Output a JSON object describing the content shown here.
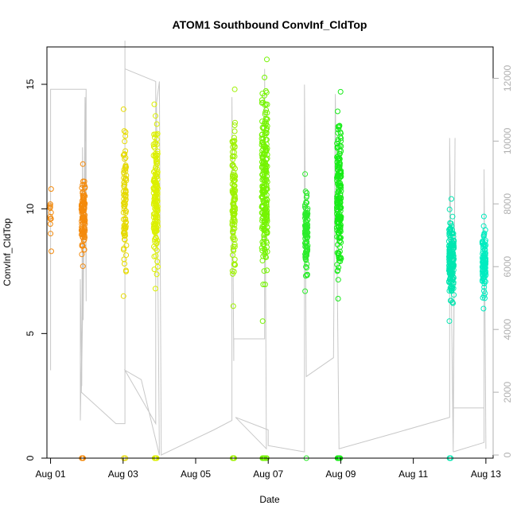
{
  "chart_data": {
    "type": "scatter",
    "title": "ATOM1 Southbound ConvInf_CldTop",
    "xlabel": "Date",
    "ylabel": "ConvInf_CldTop",
    "x_range_days": [
      0.9,
      13.2
    ],
    "ylim": [
      0,
      16.5
    ],
    "y2lim": [
      -100,
      13000
    ],
    "x_ticks": [
      {
        "day": 1,
        "label": "Aug 01"
      },
      {
        "day": 3,
        "label": "Aug 03"
      },
      {
        "day": 5,
        "label": "Aug 05"
      },
      {
        "day": 7,
        "label": "Aug 07"
      },
      {
        "day": 9,
        "label": "Aug 09"
      },
      {
        "day": 11,
        "label": "Aug 11"
      },
      {
        "day": 13,
        "label": "Aug 13"
      }
    ],
    "y_ticks": [
      {
        "value": 0,
        "label": "0"
      },
      {
        "value": 5,
        "label": "5"
      },
      {
        "value": 10,
        "label": "10"
      },
      {
        "value": 15,
        "label": "15"
      }
    ],
    "y2_ticks": [
      {
        "value": 0,
        "label": "0"
      },
      {
        "value": 2000,
        "label": "2000"
      },
      {
        "value": 4000,
        "label": "4000"
      },
      {
        "value": 6000,
        "label": "6000"
      },
      {
        "value": 8000,
        "label": "8000"
      },
      {
        "value": 10000,
        "label": "10000"
      },
      {
        "value": 12000,
        "label": "12000"
      }
    ],
    "clusters": [
      {
        "day": 1.0,
        "spread": 0.02,
        "ymin": 8.3,
        "ymax": 10.8,
        "count": 12,
        "zeros": 0,
        "color": "#F28A0E"
      },
      {
        "day": 1.9,
        "spread": 0.05,
        "ymin": 7.7,
        "ymax": 11.8,
        "count": 110,
        "zeros": 6,
        "color": "#F48A0C"
      },
      {
        "day": 3.05,
        "spread": 0.04,
        "ymin": 6.5,
        "ymax": 14.0,
        "count": 90,
        "zeros": 2,
        "color": "#E6DA00"
      },
      {
        "day": 3.9,
        "spread": 0.06,
        "ymin": 6.8,
        "ymax": 14.2,
        "count": 160,
        "zeros": 8,
        "color": "#DCF000"
      },
      {
        "day": 6.05,
        "spread": 0.04,
        "ymin": 6.1,
        "ymax": 14.8,
        "count": 110,
        "zeros": 5,
        "color": "#9EF200"
      },
      {
        "day": 6.9,
        "spread": 0.08,
        "ymin": 5.5,
        "ymax": 16.0,
        "count": 230,
        "zeros": 10,
        "color": "#74F400"
      },
      {
        "day": 8.05,
        "spread": 0.04,
        "ymin": 6.7,
        "ymax": 11.4,
        "count": 110,
        "zeros": 1,
        "color": "#2CEC2C"
      },
      {
        "day": 8.95,
        "spread": 0.06,
        "ymin": 6.4,
        "ymax": 14.7,
        "count": 200,
        "zeros": 8,
        "color": "#18EC18"
      },
      {
        "day": 12.05,
        "spread": 0.07,
        "ymin": 5.5,
        "ymax": 10.4,
        "count": 170,
        "zeros": 2,
        "color": "#00E6B0"
      },
      {
        "day": 12.95,
        "spread": 0.05,
        "ymin": 6.0,
        "ymax": 9.7,
        "count": 110,
        "zeros": 0,
        "color": "#00ECC0"
      }
    ],
    "altitude_track": {
      "series_axis": "right",
      "color": "#c8c8c8",
      "points": [
        [
          1.0,
          2700
        ],
        [
          1.0,
          11650
        ],
        [
          1.5,
          11650
        ],
        [
          1.5,
          11650
        ],
        [
          1.98,
          11650
        ],
        [
          1.82,
          1100
        ],
        [
          1.82,
          5600
        ],
        [
          1.86,
          2200
        ],
        [
          1.88,
          9800
        ],
        [
          1.9,
          4300
        ],
        [
          1.95,
          11400
        ],
        [
          1.98,
          4900
        ],
        [
          1.98,
          11650
        ],
        [
          1.85,
          2000
        ],
        [
          2.8,
          1000
        ],
        [
          3.05,
          1000
        ],
        [
          3.05,
          13200
        ],
        [
          3.05,
          12300
        ],
        [
          3.9,
          11900
        ],
        [
          3.9,
          1000
        ],
        [
          3.05,
          2700
        ],
        [
          3.5,
          2400
        ],
        [
          4.0,
          0
        ],
        [
          3.92,
          11200
        ],
        [
          4.0,
          11900
        ],
        [
          4.05,
          200
        ],
        [
          4.05,
          0
        ],
        [
          5.5,
          800
        ],
        [
          6.0,
          1100
        ],
        [
          6.0,
          11400
        ],
        [
          6.05,
          3000
        ],
        [
          6.05,
          3700
        ],
        [
          6.05,
          3700
        ],
        [
          6.9,
          3700
        ],
        [
          6.9,
          12300
        ],
        [
          6.95,
          200
        ],
        [
          6.1,
          1200
        ],
        [
          7.0,
          800
        ],
        [
          7.0,
          400
        ],
        [
          7.0,
          300
        ],
        [
          8.0,
          100
        ],
        [
          8.0,
          11800
        ],
        [
          8.05,
          2500
        ],
        [
          8.05,
          2500
        ],
        [
          8.8,
          3100
        ],
        [
          8.85,
          11500
        ],
        [
          8.95,
          300
        ],
        [
          8.95,
          200
        ],
        [
          10.5,
          700
        ],
        [
          12.0,
          1200
        ],
        [
          12.0,
          10100
        ],
        [
          12.1,
          100
        ],
        [
          12.15,
          10100
        ],
        [
          12.1,
          1500
        ],
        [
          12.1,
          1500
        ],
        [
          12.95,
          1500
        ],
        [
          12.95,
          9100
        ],
        [
          13.0,
          200
        ],
        [
          12.95,
          9100
        ],
        [
          12.95,
          400
        ],
        [
          12.1,
          100
        ]
      ]
    }
  }
}
